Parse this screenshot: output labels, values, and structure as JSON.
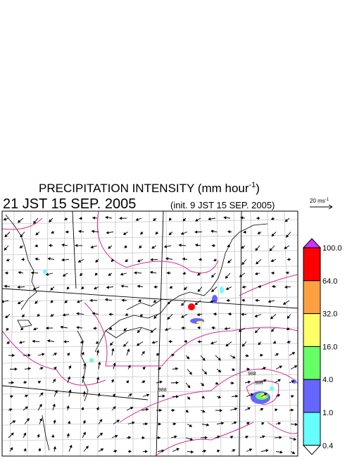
{
  "header": {
    "title": "PRECIPITATION INTENSITY (mm hour",
    "title_exponent": "-1",
    "title_close": ")",
    "valid_time": "21 JST 15 SEP. 2005",
    "init_time": "(init. 9 JST 15 SEP. 2005)"
  },
  "wind_scale": {
    "label": "20 ms",
    "exponent": "-1"
  },
  "colorbar": {
    "over_color": "#cc33ff",
    "under_color": "#ffffff",
    "colors": [
      "#ff0000",
      "#ffa040",
      "#ffff66",
      "#66ff66",
      "#6666ff",
      "#66ffff"
    ],
    "labels": [
      "100.0",
      "64.0",
      "32.0",
      "16.0",
      "4.0",
      "1.0",
      "0.4"
    ]
  },
  "contour_labels": [
    "988",
    "988",
    "985"
  ]
}
